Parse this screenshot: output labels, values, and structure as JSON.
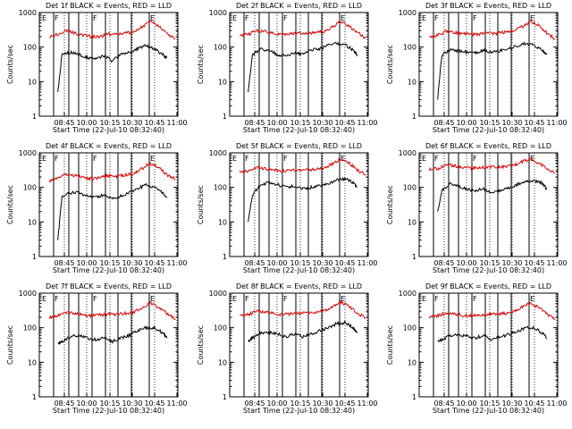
{
  "page": {
    "background": "#ffffff"
  },
  "colors": {
    "events": "#000000",
    "lld": "#dd0000",
    "axes": "#000000"
  },
  "axis": {
    "ylabel": "Counts/sec",
    "xlabel": "Start Time (22-Jul-10 08:32:40)",
    "x_ticks": [
      "08:45",
      "10:00",
      "10:15",
      "10:30",
      "10:45",
      "11:00"
    ],
    "y_ticks": [
      "1",
      "10",
      "100",
      "1000"
    ]
  },
  "chart_data": [
    {
      "type": "line",
      "title": "Det 1f BLACK = Events, RED = LLD",
      "ylim": [
        1,
        1000
      ],
      "y_scale": "log",
      "x_ticks": [
        "08:45",
        "10:00",
        "10:15",
        "10:30",
        "10:45",
        "11:00"
      ],
      "markers": [
        "E",
        "F",
        "",
        "F",
        "",
        "E"
      ],
      "series": [
        {
          "role": "events",
          "color": "#000000",
          "x": [
            "08:55",
            "09:00",
            "09:10",
            "09:20",
            "09:30",
            "09:40",
            "09:50",
            "10:00",
            "10:10",
            "10:20",
            "10:30",
            "10:40",
            "10:50",
            "11:00",
            "11:05"
          ],
          "values": [
            5,
            60,
            70,
            60,
            50,
            45,
            55,
            40,
            60,
            70,
            90,
            110,
            90,
            60,
            50
          ]
        },
        {
          "role": "lld",
          "color": "#dd0000",
          "x": [
            "08:45",
            "08:55",
            "09:05",
            "09:15",
            "09:25",
            "09:35",
            "09:45",
            "09:55",
            "10:05",
            "10:15",
            "10:25",
            "10:35",
            "10:45",
            "10:55",
            "11:05",
            "11:15"
          ],
          "values": [
            200,
            230,
            300,
            250,
            220,
            200,
            200,
            240,
            230,
            260,
            260,
            380,
            550,
            400,
            240,
            170
          ]
        }
      ]
    },
    {
      "type": "line",
      "title": "Det 2f BLACK = Events, RED = LLD",
      "ylim": [
        1,
        1000
      ],
      "y_scale": "log",
      "x_ticks": [
        "08:45",
        "10:00",
        "10:15",
        "10:30",
        "10:45",
        "11:00"
      ],
      "markers": [
        "E",
        "F",
        "",
        "F",
        "",
        "E"
      ],
      "series": [
        {
          "role": "events",
          "color": "#000000",
          "x": [
            "08:55",
            "09:00",
            "09:10",
            "09:20",
            "09:30",
            "09:40",
            "09:50",
            "10:00",
            "10:10",
            "10:20",
            "10:30",
            "10:40",
            "10:50",
            "11:00",
            "11:05"
          ],
          "values": [
            5,
            60,
            90,
            80,
            60,
            55,
            70,
            60,
            80,
            90,
            110,
            130,
            120,
            80,
            60
          ]
        },
        {
          "role": "lld",
          "color": "#dd0000",
          "x": [
            "08:45",
            "08:55",
            "09:05",
            "09:15",
            "09:25",
            "09:35",
            "09:45",
            "09:55",
            "10:05",
            "10:15",
            "10:25",
            "10:35",
            "10:45",
            "10:55",
            "11:05",
            "11:15"
          ],
          "values": [
            220,
            230,
            300,
            280,
            250,
            230,
            240,
            260,
            250,
            270,
            280,
            380,
            550,
            420,
            260,
            180
          ]
        }
      ]
    },
    {
      "type": "line",
      "title": "Det 3f BLACK = Events, RED = LLD",
      "ylim": [
        1,
        1000
      ],
      "y_scale": "log",
      "x_ticks": [
        "08:45",
        "10:00",
        "10:15",
        "10:30",
        "10:45",
        "11:00"
      ],
      "markers": [
        "E",
        "F",
        "",
        "F",
        "",
        "E"
      ],
      "series": [
        {
          "role": "events",
          "color": "#000000",
          "x": [
            "08:55",
            "09:00",
            "09:10",
            "09:20",
            "09:30",
            "09:40",
            "09:50",
            "10:00",
            "10:10",
            "10:20",
            "10:30",
            "10:40",
            "10:50",
            "11:00",
            "11:05"
          ],
          "values": [
            3,
            60,
            80,
            80,
            70,
            70,
            80,
            70,
            80,
            90,
            110,
            130,
            110,
            80,
            60
          ]
        },
        {
          "role": "lld",
          "color": "#dd0000",
          "x": [
            "08:45",
            "08:55",
            "09:05",
            "09:15",
            "09:25",
            "09:35",
            "09:45",
            "09:55",
            "10:05",
            "10:15",
            "10:25",
            "10:35",
            "10:45",
            "10:55",
            "11:05",
            "11:15"
          ],
          "values": [
            200,
            220,
            280,
            270,
            240,
            230,
            240,
            260,
            250,
            270,
            280,
            380,
            560,
            420,
            260,
            170
          ]
        }
      ]
    },
    {
      "type": "line",
      "title": "Det 4f BLACK = Events, RED = LLD",
      "ylim": [
        1,
        1000
      ],
      "y_scale": "log",
      "x_ticks": [
        "08:45",
        "10:00",
        "10:15",
        "10:30",
        "10:45",
        "11:00"
      ],
      "markers": [
        "E",
        "F",
        "",
        "F",
        "",
        "E"
      ],
      "series": [
        {
          "role": "events",
          "color": "#000000",
          "x": [
            "08:55",
            "09:00",
            "09:10",
            "09:20",
            "09:30",
            "09:40",
            "09:50",
            "10:00",
            "10:10",
            "10:20",
            "10:30",
            "10:40",
            "10:50",
            "11:00",
            "11:05"
          ],
          "values": [
            3,
            55,
            70,
            70,
            55,
            50,
            60,
            45,
            55,
            70,
            90,
            120,
            100,
            70,
            50
          ]
        },
        {
          "role": "lld",
          "color": "#dd0000",
          "x": [
            "08:45",
            "08:55",
            "09:05",
            "09:15",
            "09:25",
            "09:35",
            "09:45",
            "09:55",
            "10:05",
            "10:15",
            "10:25",
            "10:35",
            "10:45",
            "10:55",
            "11:05",
            "11:15"
          ],
          "values": [
            150,
            180,
            240,
            220,
            190,
            180,
            190,
            220,
            210,
            230,
            250,
            350,
            500,
            380,
            230,
            170
          ]
        }
      ]
    },
    {
      "type": "line",
      "title": "Det 5f BLACK = Events, RED = LLD",
      "ylim": [
        1,
        1000
      ],
      "y_scale": "log",
      "x_ticks": [
        "08:45",
        "10:00",
        "10:15",
        "10:30",
        "10:45",
        "11:00"
      ],
      "markers": [
        "E",
        "F",
        "",
        "F",
        "",
        "E"
      ],
      "series": [
        {
          "role": "events",
          "color": "#000000",
          "x": [
            "08:55",
            "09:00",
            "09:10",
            "09:20",
            "09:30",
            "09:40",
            "09:50",
            "10:00",
            "10:10",
            "10:20",
            "10:30",
            "10:40",
            "10:50",
            "11:00",
            "11:05"
          ],
          "values": [
            10,
            60,
            120,
            140,
            120,
            100,
            110,
            90,
            100,
            110,
            130,
            160,
            180,
            140,
            100
          ]
        },
        {
          "role": "lld",
          "color": "#dd0000",
          "x": [
            "08:45",
            "08:55",
            "09:05",
            "09:15",
            "09:25",
            "09:35",
            "09:45",
            "09:55",
            "10:05",
            "10:15",
            "10:25",
            "10:35",
            "10:45",
            "10:55",
            "11:05",
            "11:15"
          ],
          "values": [
            280,
            300,
            380,
            350,
            320,
            300,
            310,
            330,
            320,
            340,
            360,
            480,
            650,
            500,
            320,
            230
          ]
        }
      ]
    },
    {
      "type": "line",
      "title": "Det 6f BLACK = Events, RED = LLD",
      "ylim": [
        1,
        1000
      ],
      "y_scale": "log",
      "x_ticks": [
        "08:45",
        "10:00",
        "10:15",
        "10:30",
        "10:45",
        "11:00"
      ],
      "markers": [
        "E",
        "F",
        "",
        "F",
        "",
        "E"
      ],
      "series": [
        {
          "role": "events",
          "color": "#000000",
          "x": [
            "08:55",
            "09:00",
            "09:10",
            "09:20",
            "09:30",
            "09:40",
            "09:50",
            "10:00",
            "10:10",
            "10:20",
            "10:30",
            "10:40",
            "10:50",
            "11:00",
            "11:05"
          ],
          "values": [
            20,
            80,
            130,
            110,
            90,
            80,
            90,
            70,
            80,
            100,
            120,
            150,
            160,
            130,
            90
          ]
        },
        {
          "role": "lld",
          "color": "#dd0000",
          "x": [
            "08:45",
            "08:55",
            "09:05",
            "09:15",
            "09:25",
            "09:35",
            "09:45",
            "09:55",
            "10:05",
            "10:15",
            "10:25",
            "10:35",
            "10:45",
            "10:55",
            "11:05",
            "11:15"
          ],
          "values": [
            330,
            350,
            450,
            420,
            380,
            360,
            370,
            390,
            380,
            400,
            420,
            550,
            650,
            520,
            350,
            260
          ]
        }
      ]
    },
    {
      "type": "line",
      "title": "Det 7f BLACK = Events, RED = LLD",
      "ylim": [
        1,
        1000
      ],
      "y_scale": "log",
      "x_ticks": [
        "08:45",
        "10:00",
        "10:15",
        "10:30",
        "10:45",
        "11:00"
      ],
      "markers": [
        "E",
        "F",
        "",
        "F",
        "",
        "E"
      ],
      "series": [
        {
          "role": "events",
          "color": "#000000",
          "x": [
            "08:55",
            "09:00",
            "09:10",
            "09:20",
            "09:30",
            "09:40",
            "09:50",
            "10:00",
            "10:10",
            "10:20",
            "10:30",
            "10:40",
            "10:50",
            "11:00",
            "11:05"
          ],
          "values": [
            35,
            40,
            55,
            60,
            50,
            45,
            50,
            40,
            50,
            60,
            80,
            100,
            100,
            70,
            50
          ]
        },
        {
          "role": "lld",
          "color": "#dd0000",
          "x": [
            "08:45",
            "08:55",
            "09:05",
            "09:15",
            "09:25",
            "09:35",
            "09:45",
            "09:55",
            "10:05",
            "10:15",
            "10:25",
            "10:35",
            "10:45",
            "10:55",
            "11:05",
            "11:15"
          ],
          "values": [
            200,
            220,
            280,
            260,
            230,
            220,
            230,
            250,
            240,
            260,
            280,
            380,
            530,
            400,
            260,
            180
          ]
        }
      ]
    },
    {
      "type": "line",
      "title": "Det 8f BLACK = Events, RED = LLD",
      "ylim": [
        1,
        1000
      ],
      "y_scale": "log",
      "x_ticks": [
        "08:45",
        "10:00",
        "10:15",
        "10:30",
        "10:45",
        "11:00"
      ],
      "markers": [
        "E",
        "F",
        "",
        "F",
        "",
        "E"
      ],
      "series": [
        {
          "role": "events",
          "color": "#000000",
          "x": [
            "08:55",
            "09:00",
            "09:10",
            "09:20",
            "09:30",
            "09:40",
            "09:50",
            "10:00",
            "10:10",
            "10:20",
            "10:30",
            "10:40",
            "10:50",
            "11:00",
            "11:05"
          ],
          "values": [
            40,
            50,
            70,
            75,
            65,
            55,
            65,
            55,
            65,
            80,
            100,
            130,
            140,
            100,
            70
          ]
        },
        {
          "role": "lld",
          "color": "#dd0000",
          "x": [
            "08:45",
            "08:55",
            "09:05",
            "09:15",
            "09:25",
            "09:35",
            "09:45",
            "09:55",
            "10:05",
            "10:15",
            "10:25",
            "10:35",
            "10:45",
            "10:55",
            "11:05",
            "11:15"
          ],
          "values": [
            220,
            240,
            300,
            280,
            260,
            240,
            250,
            270,
            260,
            280,
            300,
            400,
            560,
            420,
            270,
            190
          ]
        }
      ]
    },
    {
      "type": "line",
      "title": "Det 9f BLACK = Events, RED = LLD",
      "ylim": [
        1,
        1000
      ],
      "y_scale": "log",
      "x_ticks": [
        "08:45",
        "10:00",
        "10:15",
        "10:30",
        "10:45",
        "11:00"
      ],
      "markers": [
        "E",
        "F",
        "",
        "F",
        "",
        "E"
      ],
      "series": [
        {
          "role": "events",
          "color": "#000000",
          "x": [
            "08:55",
            "09:00",
            "09:10",
            "09:20",
            "09:30",
            "09:40",
            "09:50",
            "10:00",
            "10:10",
            "10:20",
            "10:30",
            "10:40",
            "10:50",
            "11:00",
            "11:05"
          ],
          "values": [
            40,
            45,
            60,
            65,
            55,
            50,
            60,
            45,
            55,
            65,
            80,
            100,
            100,
            70,
            50
          ]
        },
        {
          "role": "lld",
          "color": "#dd0000",
          "x": [
            "08:45",
            "08:55",
            "09:05",
            "09:15",
            "09:25",
            "09:35",
            "09:45",
            "09:55",
            "10:05",
            "10:15",
            "10:25",
            "10:35",
            "10:45",
            "10:55",
            "11:05",
            "11:15"
          ],
          "values": [
            200,
            220,
            270,
            250,
            230,
            220,
            230,
            250,
            240,
            260,
            280,
            380,
            520,
            400,
            250,
            170
          ]
        }
      ]
    }
  ]
}
